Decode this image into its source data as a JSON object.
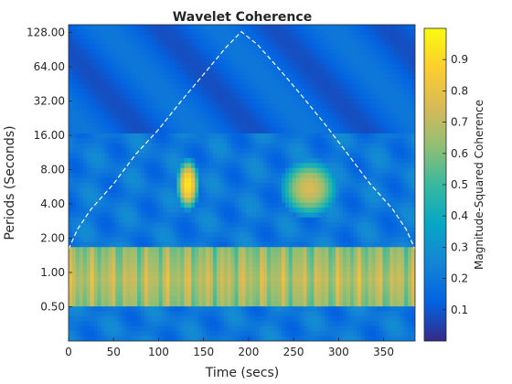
{
  "chart_data": {
    "type": "heatmap",
    "title": "Wavelet Coherence",
    "xlabel": "Time (secs)",
    "ylabel": "Periods (Seconds)",
    "colorbar_label": "Magnitude-Squared Coherence",
    "xlim": [
      0,
      385
    ],
    "ylim": [
      0.25,
      150
    ],
    "y_scale": "log2",
    "x_ticks": [
      0,
      50,
      100,
      150,
      200,
      250,
      300,
      350
    ],
    "x_tick_labels": [
      "0",
      "50",
      "100",
      "150",
      "200",
      "250",
      "300",
      "350"
    ],
    "y_ticks": [
      0.5,
      1,
      2,
      4,
      8,
      16,
      32,
      64,
      128
    ],
    "y_tick_labels": [
      "0.50",
      "1.00",
      "2.00",
      "4.00",
      "8.00",
      "16.00",
      "32.00",
      "64.00",
      "128.00"
    ],
    "colorbar_range": [
      0,
      1
    ],
    "colorbar_ticks": [
      0.1,
      0.2,
      0.3,
      0.4,
      0.5,
      0.6,
      0.7,
      0.8,
      0.9
    ],
    "colorbar_tick_labels": [
      "0.1",
      "0.2",
      "0.3",
      "0.4",
      "0.5",
      "0.6",
      "0.7",
      "0.8",
      "0.9"
    ],
    "colormap": "parula",
    "cone_of_influence": {
      "style": "white dashed",
      "x": [
        0,
        10,
        25,
        50,
        75,
        100,
        125,
        150,
        175,
        192,
        210,
        235,
        260,
        285,
        310,
        335,
        360,
        375,
        385
      ],
      "period": [
        1.6,
        2.4,
        3.6,
        6,
        11,
        18,
        32,
        55,
        95,
        130,
        100,
        60,
        35,
        20,
        11,
        6,
        3.6,
        2.4,
        1.6
      ]
    },
    "notable_regions": [
      {
        "description": "high coherence band",
        "period_range": [
          0.5,
          1.6
        ],
        "x_range": [
          0,
          385
        ],
        "coherence": 0.8
      },
      {
        "description": "high coherence patch",
        "period_range": [
          3.5,
          10
        ],
        "x_range": [
          120,
          145
        ],
        "coherence": 0.95
      },
      {
        "description": "moderate coherence patches",
        "period_range": [
          3,
          10
        ],
        "x_range": [
          235,
          300
        ],
        "coherence": 0.75
      },
      {
        "description": "low coherence background",
        "period_range": [
          16,
          150
        ],
        "x_range": [
          0,
          385
        ],
        "coherence": 0.15
      }
    ]
  },
  "colors": {
    "cone": "#ffffff",
    "axis": "#262626"
  }
}
